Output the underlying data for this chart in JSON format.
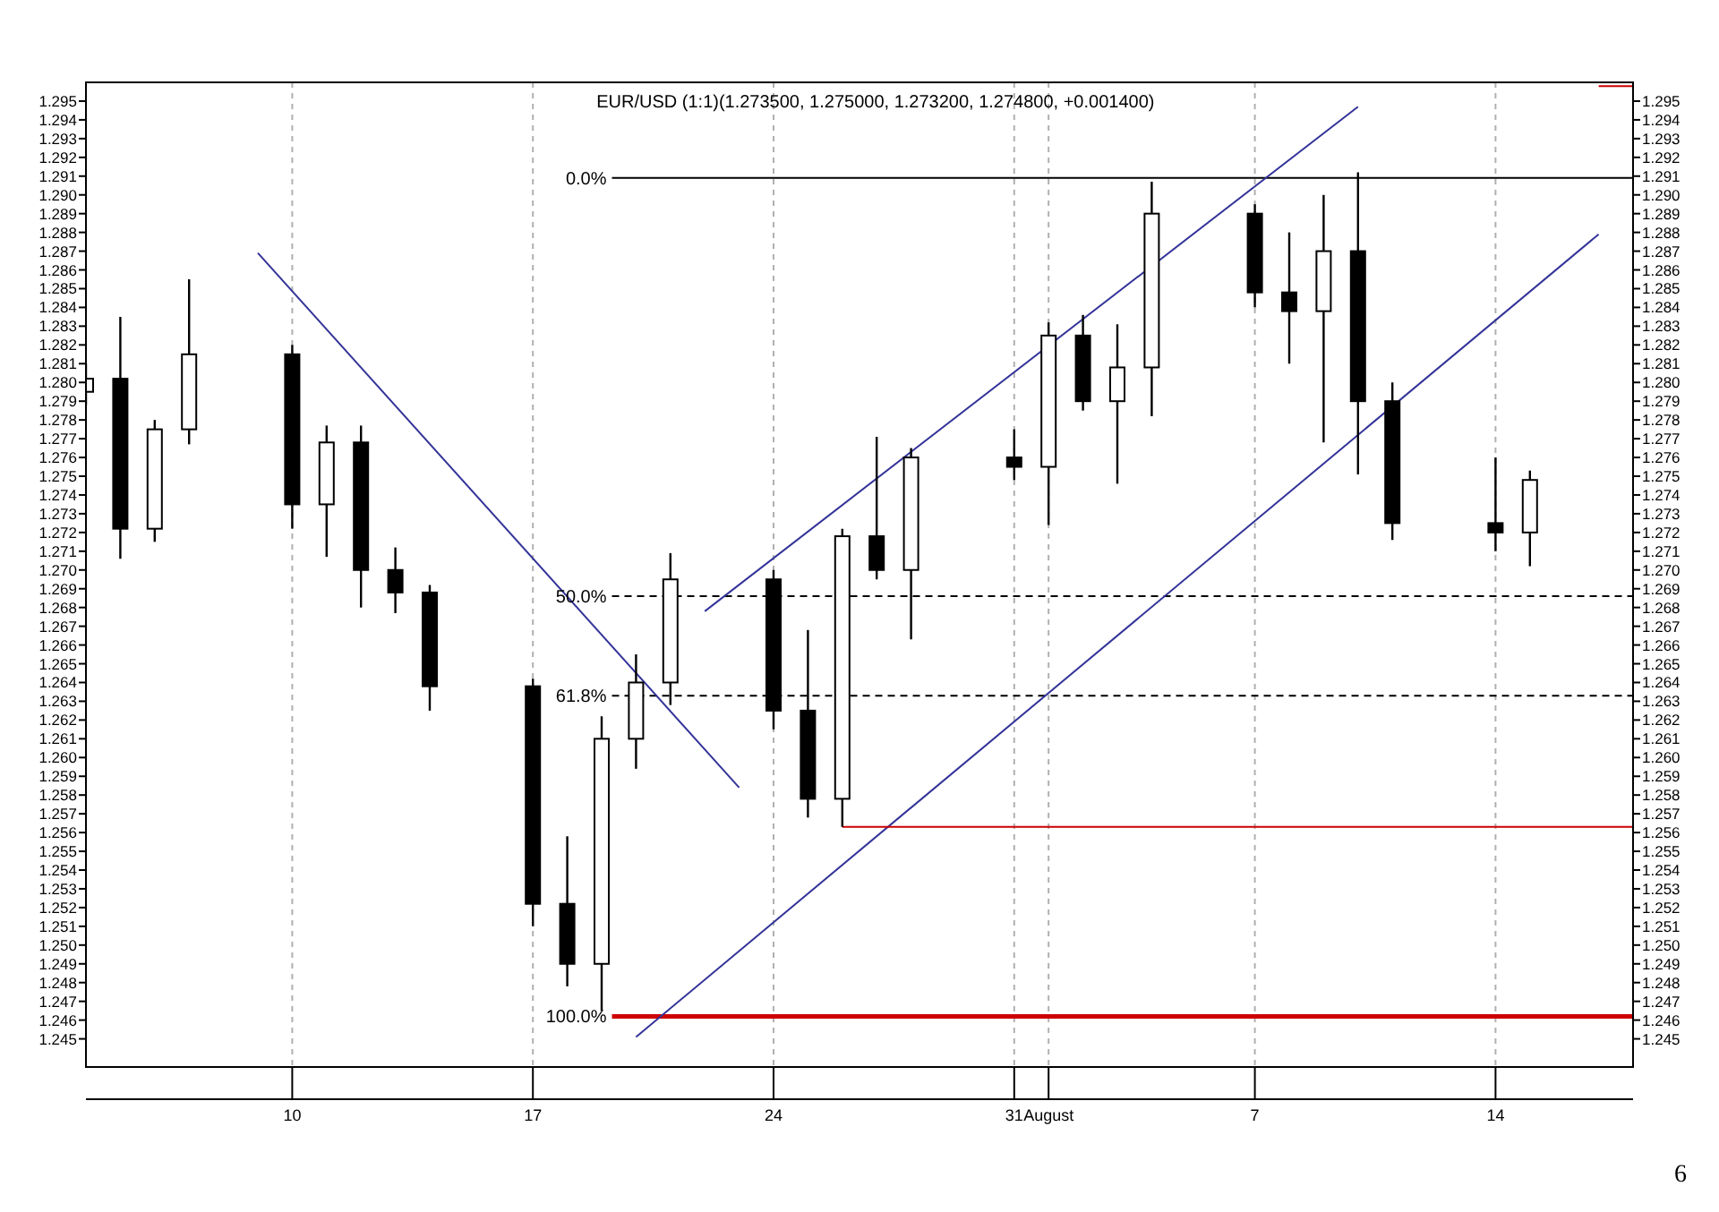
{
  "chart_data": {
    "type": "candlestick",
    "title": "EUR/USD (1:1)(1.273500, 1.275000, 1.273200, 1.274800, +0.001400)",
    "x": [
      "--07-04",
      "--07-05",
      "--07-06",
      "--07-07",
      "--07-10",
      "--07-11",
      "--07-12",
      "--07-13",
      "--07-14",
      "--07-17",
      "--07-18",
      "--07-19",
      "--07-20",
      "--07-21",
      "--07-24",
      "--07-25",
      "--07-26",
      "--07-27",
      "--07-28",
      "--07-31",
      "--08-01",
      "--08-02",
      "--08-03",
      "--08-04",
      "--08-07",
      "--08-08",
      "--08-09",
      "--08-10",
      "--08-11",
      "--08-14",
      "--08-15"
    ],
    "ohlc": [
      [
        1.2795,
        1.281,
        1.2788,
        1.2802
      ],
      [
        1.2802,
        1.2835,
        1.2706,
        1.2722
      ],
      [
        1.2722,
        1.278,
        1.2715,
        1.2775
      ],
      [
        1.2775,
        1.2855,
        1.2767,
        1.2815
      ],
      [
        1.2815,
        1.282,
        1.2722,
        1.2735
      ],
      [
        1.2735,
        1.2777,
        1.2707,
        1.2768
      ],
      [
        1.2768,
        1.2777,
        1.268,
        1.27
      ],
      [
        1.27,
        1.2712,
        1.2677,
        1.2688
      ],
      [
        1.2688,
        1.2692,
        1.2625,
        1.2638
      ],
      [
        1.2638,
        1.2642,
        1.251,
        1.2522
      ],
      [
        1.2522,
        1.2558,
        1.2478,
        1.249
      ],
      [
        1.249,
        1.2622,
        1.2465,
        1.261
      ],
      [
        1.261,
        1.2655,
        1.2594,
        1.264
      ],
      [
        1.264,
        1.2709,
        1.2628,
        1.2695
      ],
      [
        1.2695,
        1.27,
        1.2615,
        1.2625
      ],
      [
        1.2625,
        1.2668,
        1.2568,
        1.2578
      ],
      [
        1.2578,
        1.2722,
        1.2563,
        1.2718
      ],
      [
        1.2718,
        1.2771,
        1.2695,
        1.27
      ],
      [
        1.27,
        1.2765,
        1.2663,
        1.276
      ],
      [
        1.276,
        1.2775,
        1.2748,
        1.2755
      ],
      [
        1.2755,
        1.2832,
        1.2724,
        1.2825
      ],
      [
        1.2825,
        1.2836,
        1.2785,
        1.279
      ],
      [
        1.279,
        1.2831,
        1.2746,
        1.2808
      ],
      [
        1.2808,
        1.2907,
        1.2782,
        1.289
      ],
      [
        1.289,
        1.2895,
        1.284,
        1.2848
      ],
      [
        1.2848,
        1.288,
        1.281,
        1.2838
      ],
      [
        1.2838,
        1.29,
        1.2768,
        1.287
      ],
      [
        1.287,
        1.2912,
        1.2751,
        1.279
      ],
      [
        1.279,
        1.28,
        1.2716,
        1.2725
      ],
      [
        1.2725,
        1.276,
        1.271,
        1.272
      ],
      [
        1.272,
        1.2753,
        1.2702,
        1.2748
      ]
    ],
    "series": [
      {
        "type": "line",
        "color": "#333399",
        "x": [
          "--07-09",
          "--07-23"
        ],
        "values": [
          1.2869,
          1.2584
        ]
      },
      {
        "type": "line",
        "color": "#333399",
        "x": [
          "--07-22",
          "--08-10"
        ],
        "values": [
          1.2678,
          1.2947
        ]
      },
      {
        "type": "line",
        "color": "#333399",
        "x": [
          "--07-20",
          "--08-17"
        ],
        "values": [
          1.2451,
          1.2879
        ]
      },
      {
        "type": "line",
        "color": "#cc0000",
        "x": [
          "--07-26",
          "--08-18"
        ],
        "values": [
          1.2563,
          1.2563
        ]
      },
      {
        "type": "line",
        "color": "#cc0000",
        "x": [
          "--08-17",
          "--08-18"
        ],
        "values": [
          1.2958,
          1.2958
        ]
      }
    ],
    "ref_lines": [
      {
        "axis": "y",
        "value": 1.2909,
        "color": "#000000",
        "line_style": "solid"
      },
      {
        "axis": "y",
        "value": 1.2686,
        "color": "#000000",
        "line_style": "dashed"
      },
      {
        "axis": "y",
        "value": 1.2633,
        "color": "#000000",
        "line_style": "dashed"
      },
      {
        "axis": "y",
        "value": 1.2462,
        "color": "#cc0000",
        "line_style": "solid"
      }
    ],
    "xlim": [
      "--07-04",
      "--08-18"
    ],
    "xticks": [
      {
        "value": "--07-10",
        "label": "10"
      },
      {
        "value": "--07-17",
        "label": "17"
      },
      {
        "value": "--07-24",
        "label": "24"
      },
      {
        "value": "--07-31",
        "label": "31"
      },
      {
        "value": "--08-01",
        "label": "August"
      },
      {
        "value": "--08-07",
        "label": "7"
      },
      {
        "value": "--08-14",
        "label": "14"
      }
    ],
    "ylim": [
      1.2435,
      1.296
    ],
    "yticks": [
      1.245,
      1.246,
      1.247,
      1.248,
      1.249,
      {
        "value": 1.25,
        "label": "1.250"
      },
      1.251,
      1.252,
      1.253,
      1.254,
      1.255,
      1.256,
      1.257,
      1.258,
      1.259,
      {
        "value": 1.26,
        "label": "1.260"
      },
      1.261,
      1.262,
      1.263,
      1.264,
      1.265,
      1.266,
      1.267,
      1.268,
      1.269,
      {
        "value": 1.27,
        "label": "1.270"
      },
      1.271,
      1.272,
      1.273,
      1.274,
      1.275,
      1.276,
      1.277,
      1.278,
      1.279,
      {
        "value": 1.28,
        "label": "1.280"
      },
      1.281,
      1.282,
      1.283,
      1.284,
      1.285,
      1.286,
      1.287,
      1.288,
      1.289,
      {
        "value": 1.29,
        "label": "1.290"
      },
      1.291,
      1.292,
      1.293,
      1.294,
      1.295
    ],
    "y2lim": [
      1.2435,
      1.296
    ],
    "y2ticks": [
      1.245,
      1.246,
      1.247,
      1.248,
      1.249,
      {
        "value": 1.25,
        "label": "1.250"
      },
      1.251,
      1.252,
      1.253,
      1.254,
      1.255,
      1.256,
      1.257,
      1.258,
      1.259,
      {
        "value": 1.26,
        "label": "1.260"
      },
      1.261,
      1.262,
      1.263,
      1.264,
      1.265,
      1.266,
      1.267,
      1.268,
      1.269,
      {
        "value": 1.27,
        "label": "1.270"
      },
      1.271,
      1.272,
      1.273,
      1.274,
      1.275,
      1.276,
      1.277,
      1.278,
      1.279,
      {
        "value": 1.28,
        "label": "1.280"
      },
      1.281,
      1.282,
      1.283,
      1.284,
      1.285,
      1.286,
      1.287,
      1.288,
      1.289,
      {
        "value": 1.29,
        "label": "1.290"
      },
      1.291,
      1.292,
      1.293,
      1.294,
      1.295
    ],
    "grid": "x",
    "annotations": [
      "0.0%",
      "50.0%",
      "61.8%",
      "100.0%",
      "6"
    ]
  }
}
